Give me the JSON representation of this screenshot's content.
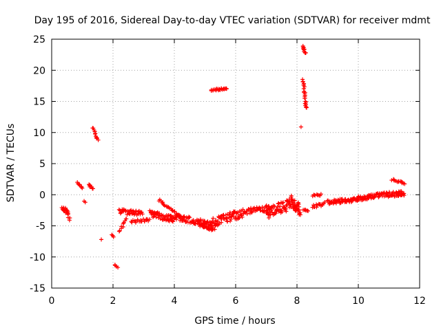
{
  "chart_data": {
    "type": "scatter",
    "title": "Day 195 of 2016, Sidereal Day-to-day VTEC variation (SDTVAR) for receiver mdmt",
    "xlabel": "GPS time / hours",
    "ylabel": "SDTVAR / TECUs",
    "xlim": [
      0,
      12
    ],
    "ylim": [
      -15,
      25
    ],
    "xticks": [
      0,
      2,
      4,
      6,
      8,
      10,
      12
    ],
    "yticks": [
      -15,
      -10,
      -5,
      0,
      5,
      10,
      15,
      20,
      25
    ],
    "grid": true,
    "marker": "+",
    "colors": {
      "points": "#ff0000",
      "axes": "#000000",
      "grid": "#a0a0a0"
    },
    "series": [
      {
        "name": "SDTVAR",
        "clusters": [
          {
            "x0": 0.35,
            "x1": 0.55,
            "y0": -2.2,
            "y1": -2.8,
            "spread": 0.9,
            "n": 20
          },
          {
            "x0": 0.55,
            "x1": 0.6,
            "y0": -3.7,
            "y1": -4.0,
            "spread": 0.3,
            "n": 3
          },
          {
            "x0": 0.85,
            "x1": 1.0,
            "y0": 2.0,
            "y1": 1.1,
            "spread": 0.3,
            "n": 8
          },
          {
            "x0": 1.05,
            "x1": 1.1,
            "y0": -1.0,
            "y1": -1.2,
            "spread": 0.1,
            "n": 2
          },
          {
            "x0": 1.2,
            "x1": 1.35,
            "y0": 1.6,
            "y1": 1.0,
            "spread": 0.3,
            "n": 8
          },
          {
            "x0": 1.35,
            "x1": 1.5,
            "y0": 10.8,
            "y1": 8.8,
            "spread": 0.3,
            "n": 12
          },
          {
            "x0": 1.62,
            "x1": 1.65,
            "y0": -7.2,
            "y1": -7.2,
            "spread": 0.0,
            "n": 1
          },
          {
            "x0": 1.97,
            "x1": 2.03,
            "y0": -6.4,
            "y1": -6.8,
            "spread": 0.1,
            "n": 3
          },
          {
            "x0": 2.05,
            "x1": 2.15,
            "y0": -11.2,
            "y1": -11.7,
            "spread": 0.2,
            "n": 4
          },
          {
            "x0": 2.2,
            "x1": 2.45,
            "y0": -6.0,
            "y1": -3.8,
            "spread": 0.4,
            "n": 10
          },
          {
            "x0": 2.2,
            "x1": 2.95,
            "y0": -2.7,
            "y1": -3.0,
            "spread": 0.8,
            "n": 40
          },
          {
            "x0": 2.6,
            "x1": 3.2,
            "y0": -4.4,
            "y1": -4.0,
            "spread": 0.5,
            "n": 20
          },
          {
            "x0": 3.2,
            "x1": 4.0,
            "y0": -3.0,
            "y1": -4.0,
            "spread": 1.0,
            "n": 60
          },
          {
            "x0": 3.5,
            "x1": 4.2,
            "y0": -0.8,
            "y1": -3.5,
            "spread": 0.4,
            "n": 25
          },
          {
            "x0": 4.0,
            "x1": 5.2,
            "y0": -3.5,
            "y1": -4.8,
            "spread": 1.0,
            "n": 70
          },
          {
            "x0": 4.8,
            "x1": 5.3,
            "y0": -4.8,
            "y1": -5.6,
            "spread": 0.5,
            "n": 25
          },
          {
            "x0": 5.2,
            "x1": 5.7,
            "y0": 16.8,
            "y1": 17.1,
            "spread": 0.3,
            "n": 25
          },
          {
            "x0": 5.2,
            "x1": 6.2,
            "y0": -4.5,
            "y1": -3.0,
            "spread": 1.4,
            "n": 70
          },
          {
            "x0": 6.2,
            "x1": 7.2,
            "y0": -2.8,
            "y1": -2.0,
            "spread": 0.9,
            "n": 50
          },
          {
            "x0": 7.0,
            "x1": 7.8,
            "y0": -3.0,
            "y1": -1.5,
            "spread": 1.8,
            "n": 60
          },
          {
            "x0": 7.8,
            "x1": 8.1,
            "y0": -1.0,
            "y1": -2.5,
            "spread": 1.8,
            "n": 40
          },
          {
            "x0": 8.18,
            "x1": 8.28,
            "y0": 23.8,
            "y1": 22.8,
            "spread": 0.4,
            "n": 10
          },
          {
            "x0": 8.2,
            "x1": 8.3,
            "y0": 18.5,
            "y1": 13.8,
            "spread": 0.4,
            "n": 25
          },
          {
            "x0": 8.15,
            "x1": 8.2,
            "y0": 10.9,
            "y1": 10.9,
            "spread": 0.0,
            "n": 1
          },
          {
            "x0": 8.2,
            "x1": 8.35,
            "y0": -2.4,
            "y1": -2.6,
            "spread": 0.3,
            "n": 6
          },
          {
            "x0": 8.5,
            "x1": 8.8,
            "y0": -0.1,
            "y1": 0.0,
            "spread": 0.3,
            "n": 10
          },
          {
            "x0": 8.5,
            "x1": 8.9,
            "y0": -2.0,
            "y1": -1.4,
            "spread": 0.6,
            "n": 15
          },
          {
            "x0": 9.0,
            "x1": 10.0,
            "y0": -1.2,
            "y1": -0.8,
            "spread": 0.7,
            "n": 60
          },
          {
            "x0": 10.0,
            "x1": 11.0,
            "y0": -0.6,
            "y1": 0.2,
            "spread": 0.7,
            "n": 70
          },
          {
            "x0": 11.0,
            "x1": 11.5,
            "y0": 0.0,
            "y1": 0.2,
            "spread": 0.8,
            "n": 40
          },
          {
            "x0": 11.1,
            "x1": 11.5,
            "y0": 2.4,
            "y1": 1.8,
            "spread": 0.3,
            "n": 15
          }
        ]
      }
    ]
  }
}
